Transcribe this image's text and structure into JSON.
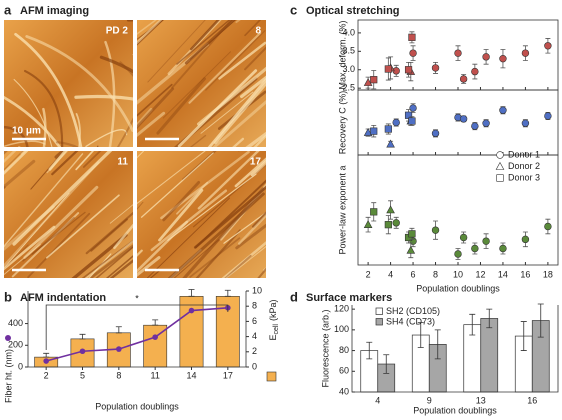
{
  "panel_letters": [
    "a",
    "b",
    "c",
    "d"
  ],
  "images": {
    "title": "AFM imaging",
    "labels": [
      "PD 2",
      "8",
      "11",
      "17"
    ],
    "scale_label": "10 μm"
  },
  "chart_data": [
    {
      "type": "bar",
      "title": "AFM indentation",
      "categories": [
        "2",
        "5",
        "8",
        "11",
        "14",
        "17"
      ],
      "xlabel": "Population doublings",
      "ylabel": "Fiber ht. (nm)",
      "y2label": [
        "E",
        "cell",
        "(kPa)"
      ],
      "ylim": [
        0,
        700
      ],
      "yticks": [
        0,
        200,
        400
      ],
      "y2lim": [
        0,
        10
      ],
      "y2ticks": [
        0,
        2,
        4,
        6,
        8,
        10
      ],
      "annotation": "*",
      "series": [
        {
          "type": "bar",
          "axis": "y2",
          "color": "#f4b04f",
          "values": [
            1.3,
            3.7,
            4.5,
            5.5,
            9.3,
            9.3
          ],
          "errors": [
            0.5,
            0.6,
            0.8,
            0.7,
            0.9,
            0.8
          ]
        },
        {
          "type": "line",
          "axis": "y",
          "color": "#7030a0",
          "values": [
            55,
            145,
            165,
            275,
            520,
            545
          ]
        }
      ]
    },
    {
      "type": "scatter",
      "title": "Optical stretching",
      "xlabel": "Population doublings",
      "xlim": [
        1.1,
        18.9
      ],
      "xticks": [
        2,
        4,
        6,
        8,
        10,
        12,
        14,
        16,
        18
      ],
      "series": [
        {
          "name": "Donor 1",
          "marker": "circle",
          "x": [
            4.5,
            6,
            8,
            10,
            10.5,
            11.5,
            12.5,
            14,
            16,
            18
          ]
        },
        {
          "name": "Donor 2",
          "marker": "triangle",
          "x": [
            2,
            4,
            5.8
          ]
        },
        {
          "name": "Donor 3",
          "marker": "square",
          "x": [
            2.5,
            3.8,
            5.6,
            5.9
          ]
        }
      ],
      "panels": [
        {
          "ylabel": "Max. deform. (%)",
          "color": "#c0504d",
          "ylim": [
            2.45,
            4.35
          ],
          "yticks": [
            2.5,
            {
              "value": 3,
              "label": "3.0"
            },
            3.5,
            {
              "value": 4,
              "label": "4.0"
            }
          ],
          "values": [
            [
              2.97,
              3.45,
              3.05,
              3.45,
              2.75,
              2.95,
              3.35,
              3.3,
              3.45,
              3.65
            ],
            [
              2.65,
              3.05,
              2.95
            ],
            [
              2.73,
              3.02,
              3.0,
              3.88
            ]
          ],
          "errors": [
            [
              0.15,
              0.2,
              0.15,
              0.2,
              0.12,
              0.2,
              0.2,
              0.25,
              0.2,
              0.2
            ],
            [
              0.15,
              0.3,
              0.25
            ],
            [
              0.25,
              0.3,
              0.2,
              0.15
            ]
          ]
        },
        {
          "ylabel": "Recovery C (%)",
          "color": "#4f6fc4",
          "ylim": [
            0.3,
            1.2
          ],
          "values": [
            [
              0.75,
              0.95,
              0.6,
              0.82,
              0.8,
              0.7,
              0.74,
              0.92,
              0.74,
              0.84
            ],
            [
              0.61,
              0.45,
              0.77
            ],
            [
              0.63,
              0.66,
              0.85,
              0.77
            ]
          ],
          "errors": [
            [
              0.05,
              0.06,
              0.05,
              0.05,
              0.04,
              0.05,
              0.05,
              0.05,
              0.05,
              0.05
            ],
            [
              0.05,
              0.04,
              0.06
            ],
            [
              0.08,
              0.07,
              0.08,
              0.06
            ]
          ]
        },
        {
          "ylabel": "Power-law exponent a",
          "color": "#5a8a3a",
          "ylim": [
            0.1,
            0.7
          ],
          "values": [
            [
              0.33,
              0.23,
              0.29,
              0.16,
              0.25,
              0.19,
              0.23,
              0.19,
              0.24,
              0.31
            ],
            [
              0.32,
              0.4,
              0.18
            ],
            [
              0.39,
              0.32,
              0.25,
              0.27
            ]
          ],
          "errors": [
            [
              0.03,
              0.03,
              0.05,
              0.03,
              0.03,
              0.03,
              0.04,
              0.03,
              0.04,
              0.04
            ],
            [
              0.04,
              0.05,
              0.04
            ],
            [
              0.05,
              0.05,
              0.03,
              0.03
            ]
          ]
        }
      ]
    },
    {
      "type": "grouped_bar",
      "title": "Surface markers",
      "categories": [
        "4",
        "9",
        "13",
        "16"
      ],
      "xlabel": "Population doublings",
      "ylabel": "Fluorescence (arb.)",
      "ylim": [
        40,
        124
      ],
      "yticks": [
        40,
        60,
        80,
        100,
        120
      ],
      "series": [
        {
          "name": "SH2 (CD105)",
          "color": "#ffffff",
          "values": [
            80,
            95,
            105,
            94
          ],
          "errors": [
            8,
            12,
            10,
            14
          ]
        },
        {
          "name": "SH4 (CD73)",
          "color": "#a6a6a6",
          "values": [
            67,
            86,
            111,
            109
          ],
          "errors": [
            9,
            14,
            9,
            16
          ]
        }
      ]
    }
  ]
}
